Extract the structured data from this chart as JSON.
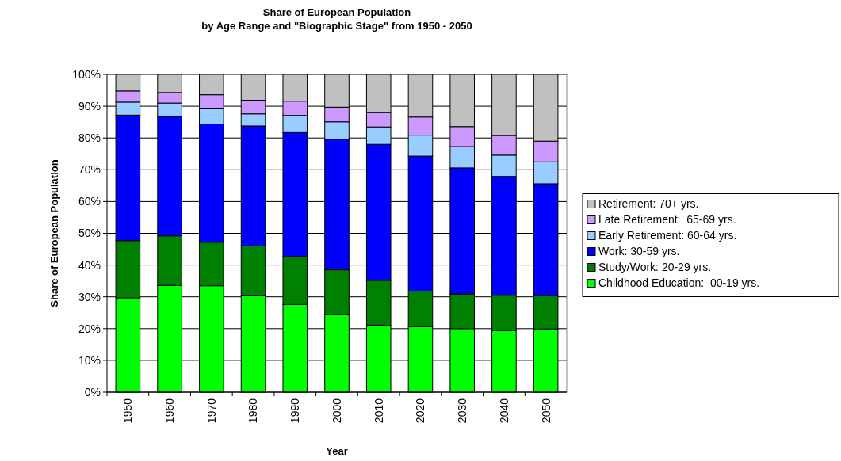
{
  "chart_data": {
    "type": "bar",
    "stacked": true,
    "title": "Share of European Population\nby Age Range and \"Biographic Stage\" from 1950 - 2050",
    "xlabel": "Year",
    "ylabel": "Share of European Population",
    "categories": [
      "1950",
      "1960",
      "1970",
      "1980",
      "1990",
      "2000",
      "2010",
      "2020",
      "2030",
      "2040",
      "2050"
    ],
    "series": [
      {
        "name": "Childhood Education:  00-19 yrs.",
        "color": "#00ff00",
        "values": [
          29.7,
          33.6,
          33.5,
          30.3,
          27.6,
          24.4,
          21.1,
          20.6,
          20.0,
          19.4,
          19.9
        ]
      },
      {
        "name": "Study/Work: 20-29 yrs.",
        "color": "#008000",
        "values": [
          18.0,
          15.6,
          13.7,
          15.8,
          15.1,
          14.1,
          14.1,
          11.2,
          10.9,
          11.1,
          10.5
        ]
      },
      {
        "name": "Work: 30-59 yrs.",
        "color": "#0000ff",
        "values": [
          39.5,
          37.6,
          37.2,
          37.7,
          39.0,
          41.1,
          42.8,
          42.5,
          39.7,
          37.4,
          35.2
        ]
      },
      {
        "name": "Early Retirement: 60-64 yrs.",
        "color": "#99ccff",
        "values": [
          4.1,
          4.2,
          5.0,
          3.8,
          5.4,
          5.5,
          5.5,
          6.6,
          6.7,
          6.7,
          6.9
        ]
      },
      {
        "name": "Late Retirement:  65-69 yrs.",
        "color": "#cc99ff",
        "values": [
          3.5,
          3.3,
          4.2,
          4.3,
          4.5,
          4.6,
          4.5,
          5.7,
          6.3,
          6.2,
          6.5
        ]
      },
      {
        "name": "Retirement: 70+ yrs.",
        "color": "#c0c0c0",
        "values": [
          5.2,
          5.7,
          6.4,
          8.1,
          8.4,
          10.3,
          12.0,
          13.4,
          16.4,
          19.2,
          21.0
        ]
      }
    ],
    "ylim": [
      0,
      100
    ],
    "yticks": [
      {
        "value": 0,
        "label": "0%"
      },
      {
        "value": 10,
        "label": "10%"
      },
      {
        "value": 20,
        "label": "20%"
      },
      {
        "value": 30,
        "label": "30%"
      },
      {
        "value": 40,
        "label": "40%"
      },
      {
        "value": 50,
        "label": "50%"
      },
      {
        "value": 60,
        "label": "60%"
      },
      {
        "value": 70,
        "label": "70%"
      },
      {
        "value": 80,
        "label": "80%"
      },
      {
        "value": 90,
        "label": "90%"
      },
      {
        "value": 100,
        "label": "100%"
      }
    ],
    "grid": "y",
    "legend": "right"
  }
}
